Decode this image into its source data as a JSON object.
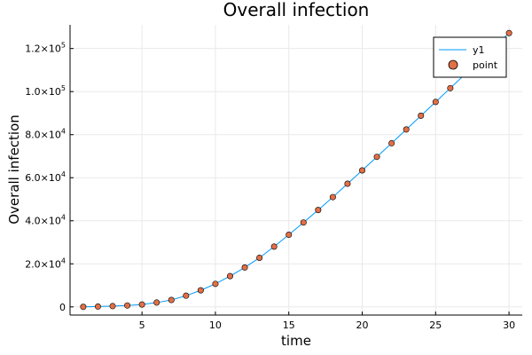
{
  "chart_data": {
    "type": "scatter",
    "title": "Overall infection",
    "xlabel": "time",
    "ylabel": "Overall infection",
    "xlim": [
      0.1,
      30.9
    ],
    "ylim": [
      -3800,
      131000
    ],
    "x_ticks": [
      5,
      10,
      15,
      20,
      25,
      30
    ],
    "x_tick_labels": [
      "5",
      "10",
      "15",
      "20",
      "25",
      "30"
    ],
    "y_ticks": [
      0,
      20000,
      40000,
      60000,
      80000,
      100000,
      120000
    ],
    "y_tick_labels": [
      {
        "mantissa": "0",
        "exp": ""
      },
      {
        "mantissa": "2.0×10",
        "exp": "4"
      },
      {
        "mantissa": "4.0×10",
        "exp": "4"
      },
      {
        "mantissa": "6.0×10",
        "exp": "4"
      },
      {
        "mantissa": "8.0×10",
        "exp": "4"
      },
      {
        "mantissa": "1.0×10",
        "exp": "5"
      },
      {
        "mantissa": "1.2×10",
        "exp": "5"
      }
    ],
    "grid": true,
    "legend_position": "top-right",
    "x": [
      1,
      2,
      3,
      4,
      5,
      6,
      7,
      8,
      9,
      10,
      11,
      12,
      13,
      14,
      15,
      16,
      17,
      18,
      19,
      20,
      21,
      22,
      23,
      24,
      25,
      26,
      27,
      28,
      29,
      30
    ],
    "series": [
      {
        "name": "y1",
        "kind": "line",
        "color": "#009AFA",
        "values": [
          0,
          150,
          350,
          650,
          1100,
          2000,
          3200,
          5200,
          7700,
          10700,
          14300,
          18300,
          22800,
          28000,
          33500,
          39200,
          45000,
          51000,
          57200,
          63400,
          69700,
          76000,
          82400,
          88800,
          95200,
          101600,
          108000,
          114400,
          120800,
          127200
        ]
      },
      {
        "name": "point",
        "kind": "scatter",
        "color": "#E26F46",
        "values": [
          0,
          150,
          350,
          650,
          1100,
          2000,
          3200,
          5200,
          7700,
          10700,
          14300,
          18300,
          22800,
          28000,
          33500,
          39200,
          45000,
          51000,
          57200,
          63400,
          69700,
          76000,
          82400,
          88800,
          95200,
          101600,
          108000,
          114400,
          120800,
          127200
        ]
      }
    ]
  }
}
